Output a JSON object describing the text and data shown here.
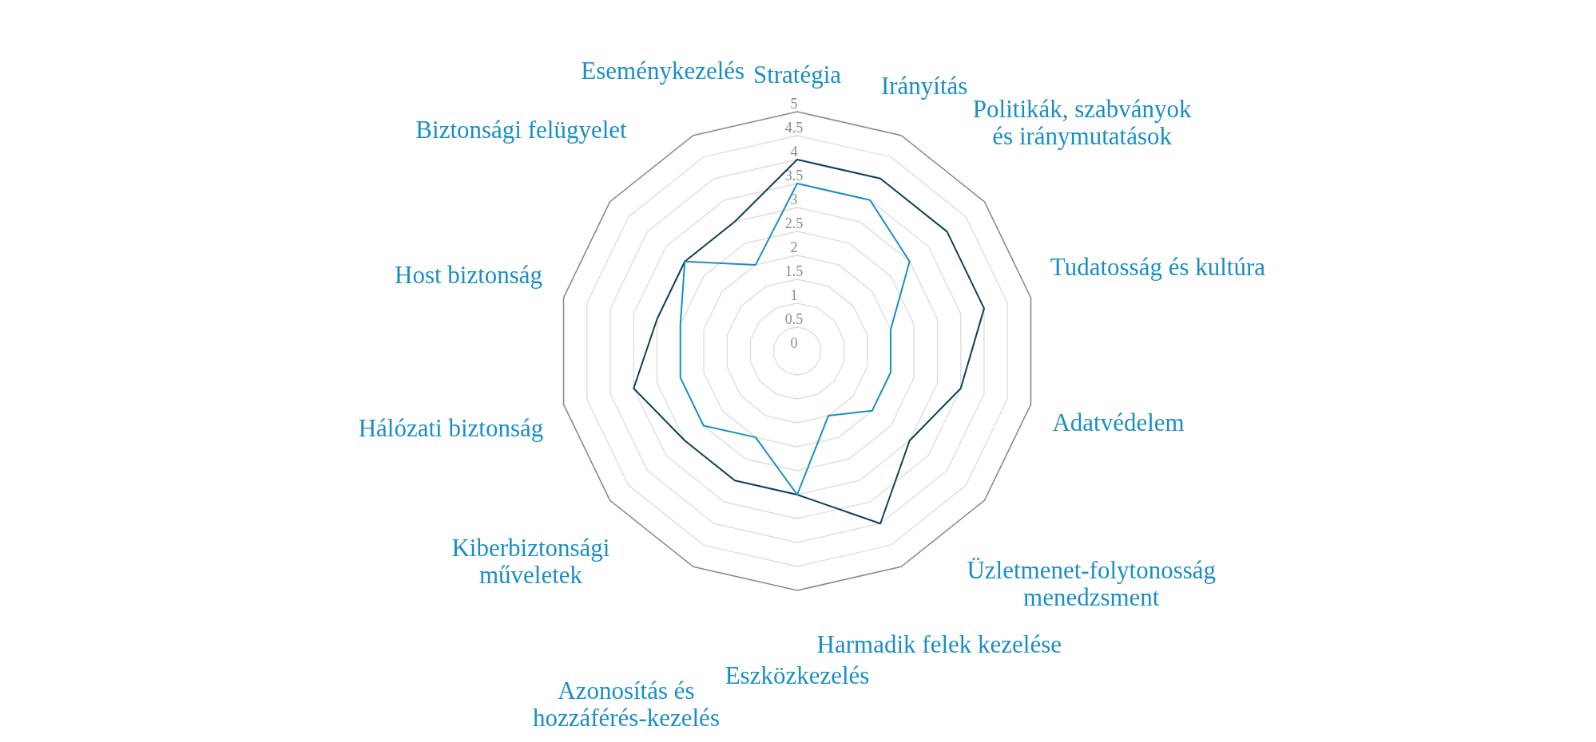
{
  "chart_data": {
    "type": "radar",
    "categories": [
      "Stratégia",
      "Irányítás",
      "Politikák, szabványok és iránymutatások",
      "Tudatosság és kultúra",
      "Adatvédelem",
      "Üzletmenet-folytonosság menedzsment",
      "Harmadik felek kezelése",
      "Eszközkezelés",
      "Azonosítás és hozzáférés-kezelés",
      "Kiberbiztonsági műveletek",
      "Hálózati biztonság",
      "Host biztonság",
      "Biztonsági felügyelet",
      "Eseménykezelés"
    ],
    "series": [
      {
        "color": "#0e3f57",
        "values": [
          4,
          4,
          4,
          4,
          3.5,
          3,
          4,
          3,
          3,
          3,
          3.5,
          3,
          3,
          3
        ]
      },
      {
        "color": "#1a8fc4",
        "values": [
          3.5,
          3.5,
          3,
          2,
          2,
          2,
          1.5,
          3,
          2,
          2.5,
          2.5,
          2.5,
          3,
          2
        ]
      }
    ],
    "ylim": [
      0,
      5
    ],
    "yticks": [
      0,
      0.5,
      1,
      1.5,
      2,
      2.5,
      3,
      3.5,
      4,
      4.5,
      5
    ],
    "grid": true,
    "marker": "none",
    "line_style": "solid"
  }
}
